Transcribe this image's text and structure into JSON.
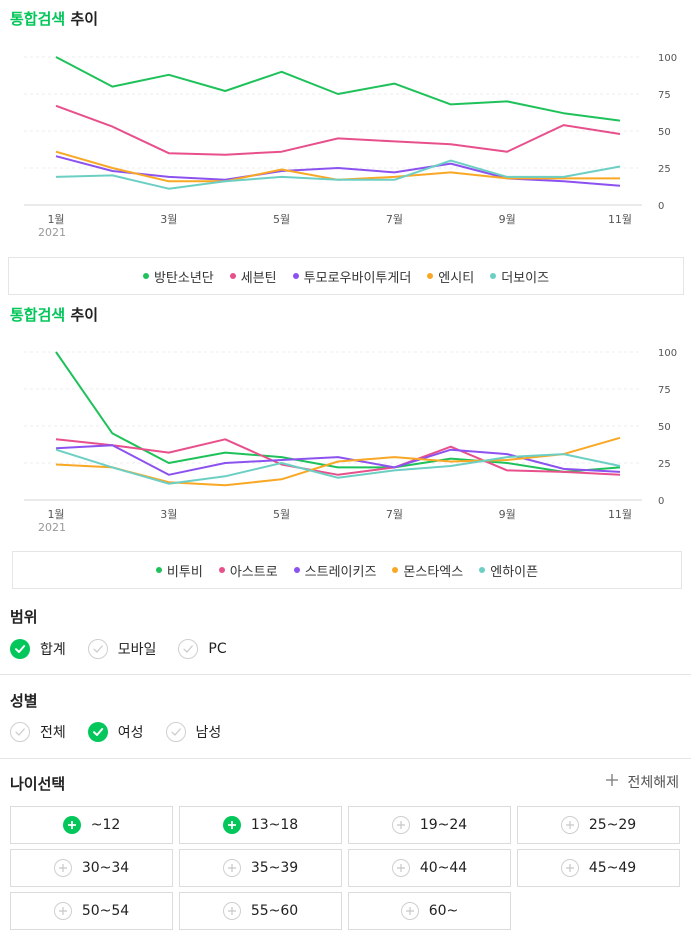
{
  "chart1": {
    "title_highlight": "통합검색",
    "title_rest": "추이",
    "chart_data": {
      "type": "line",
      "x": [
        "1월",
        "2월",
        "3월",
        "4월",
        "5월",
        "6월",
        "7월",
        "8월",
        "9월",
        "10월",
        "11월"
      ],
      "x_tick_labels": [
        "1월",
        "3월",
        "5월",
        "7월",
        "9월",
        "11월"
      ],
      "x_year_label": "2021",
      "y_ticks": [
        0,
        25,
        50,
        75,
        100
      ],
      "ylim": [
        0,
        100
      ],
      "grid": true,
      "legend_position": "bottom",
      "series": [
        {
          "name": "방탄소년단",
          "color": "#1fc15a",
          "values": [
            100,
            80,
            88,
            77,
            90,
            75,
            82,
            68,
            70,
            62,
            57
          ]
        },
        {
          "name": "세븐틴",
          "color": "#e8508c",
          "values": [
            67,
            53,
            35,
            34,
            36,
            45,
            43,
            41,
            36,
            54,
            48
          ]
        },
        {
          "name": "투모로우바이투게더",
          "color": "#8c52f0",
          "values": [
            33,
            23,
            19,
            17,
            23,
            25,
            22,
            28,
            18,
            16,
            13
          ]
        },
        {
          "name": "엔시티",
          "color": "#f9a825",
          "values": [
            36,
            25,
            16,
            16,
            24,
            17,
            19,
            22,
            18,
            18,
            18
          ]
        },
        {
          "name": "더보이즈",
          "color": "#6ccfc4",
          "values": [
            19,
            20,
            11,
            16,
            19,
            17,
            17,
            30,
            19,
            19,
            26
          ]
        }
      ]
    }
  },
  "chart2": {
    "title_highlight": "통합검색",
    "title_rest": "추이",
    "chart_data": {
      "type": "line",
      "x": [
        "1월",
        "2월",
        "3월",
        "4월",
        "5월",
        "6월",
        "7월",
        "8월",
        "9월",
        "10월",
        "11월"
      ],
      "x_tick_labels": [
        "1월",
        "3월",
        "5월",
        "7월",
        "9월",
        "11월"
      ],
      "x_year_label": "2021",
      "y_ticks": [
        0,
        25,
        50,
        75,
        100
      ],
      "ylim": [
        0,
        100
      ],
      "grid": true,
      "legend_position": "bottom",
      "series": [
        {
          "name": "비투비",
          "color": "#1fc15a",
          "values": [
            100,
            45,
            25,
            32,
            29,
            22,
            22,
            28,
            25,
            19,
            22
          ]
        },
        {
          "name": "아스트로",
          "color": "#e8508c",
          "values": [
            41,
            37,
            32,
            41,
            24,
            17,
            22,
            36,
            20,
            19,
            17
          ]
        },
        {
          "name": "스트레이키즈",
          "color": "#8c52f0",
          "values": [
            35,
            37,
            17,
            25,
            27,
            29,
            22,
            34,
            31,
            21,
            19
          ]
        },
        {
          "name": "몬스타엑스",
          "color": "#f9a825",
          "values": [
            24,
            22,
            12,
            10,
            14,
            26,
            29,
            26,
            27,
            31,
            42
          ]
        },
        {
          "name": "엔하이픈",
          "color": "#6ccfc4",
          "values": [
            34,
            22,
            11,
            16,
            25,
            15,
            20,
            23,
            29,
            31,
            23
          ]
        }
      ]
    }
  },
  "filters": {
    "range": {
      "heading": "범위",
      "options": [
        {
          "label": "합계",
          "checked": true
        },
        {
          "label": "모바일",
          "checked": false
        },
        {
          "label": "PC",
          "checked": false
        }
      ]
    },
    "gender": {
      "heading": "성별",
      "options": [
        {
          "label": "전체",
          "checked": false
        },
        {
          "label": "여성",
          "checked": true
        },
        {
          "label": "남성",
          "checked": false
        }
      ]
    },
    "age": {
      "heading": "나이선택",
      "reset_label": "전체해제",
      "options": [
        {
          "label": "~12",
          "checked": true
        },
        {
          "label": "13~18",
          "checked": true
        },
        {
          "label": "19~24",
          "checked": false
        },
        {
          "label": "25~29",
          "checked": false
        },
        {
          "label": "30~34",
          "checked": false
        },
        {
          "label": "35~39",
          "checked": false
        },
        {
          "label": "40~44",
          "checked": false
        },
        {
          "label": "45~49",
          "checked": false
        },
        {
          "label": "50~54",
          "checked": false
        },
        {
          "label": "55~60",
          "checked": false
        },
        {
          "label": "60~",
          "checked": false
        }
      ]
    }
  },
  "colors": {
    "accent": "#03c75a",
    "check_off_border": "#cfcfcf",
    "grid": "#e8e8e8",
    "axis_text": "#555555"
  }
}
